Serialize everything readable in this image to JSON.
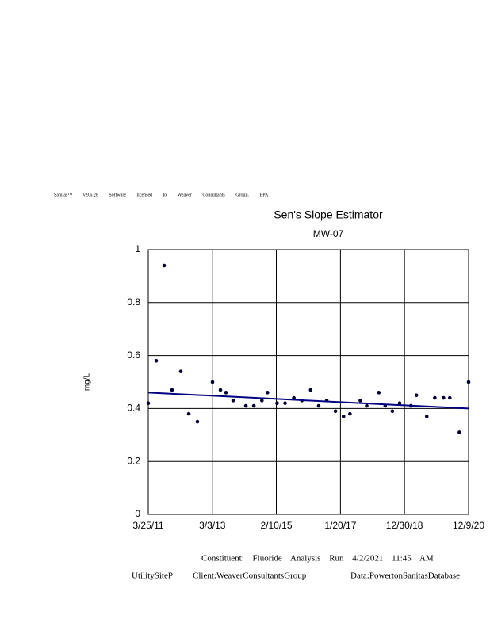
{
  "header": "Sanitas™ v.9.6.28 Software licensed to Weaver Consultants Group. EPA",
  "footer": [
    "Constituent: Fluoride Analysis Run 4/2/2021 11:45 AM",
    "UtilitySiteP",
    "Client:WeaverConsultantsGroup",
    "Data:PowertonSanitasDatabase"
  ],
  "chart_data": {
    "type": "scatter",
    "title": "Sen's Slope Estimator",
    "subtitle": "MW-07",
    "y_label": "mg/L",
    "series": [
      {
        "name": "MW-07",
        "color": "#000033",
        "x": [
          "3/25/11",
          "6/21/11",
          "9/17/11",
          "12/13/11",
          "3/19/12",
          "6/15/12",
          "9/19/12",
          "3/5/13",
          "6/1/13",
          "8/1/13",
          "10/20/13",
          "3/10/14",
          "6/6/14",
          "9/3/14",
          "11/4/14",
          "2/18/15",
          "5/18/15",
          "8/23/15",
          "11/20/15",
          "2/25/16",
          "5/24/16",
          "8/21/16",
          "11/26/16",
          "2/23/17",
          "5/5/17",
          "8/28/17",
          "11/7/17",
          "3/21/18",
          "5/31/18",
          "8/18/18",
          "11/6/18",
          "3/10/19",
          "5/11/19",
          "9/3/19",
          "12/1/19",
          "3/6/20",
          "5/15/20",
          "8/29/20",
          "12/9/20"
        ],
        "values": [
          0.42,
          0.58,
          0.94,
          0.47,
          0.54,
          0.38,
          0.35,
          0.5,
          0.47,
          0.46,
          0.43,
          0.41,
          0.41,
          0.43,
          0.46,
          0.42,
          0.42,
          0.44,
          0.43,
          0.47,
          0.41,
          0.43,
          0.39,
          0.37,
          0.38,
          0.43,
          0.41,
          0.46,
          0.41,
          0.39,
          0.42,
          0.41,
          0.45,
          0.37,
          0.44,
          0.44,
          0.44,
          0.31,
          0.5
        ]
      }
    ],
    "trend": {
      "color": "#000080",
      "x": [
        "3/25/11",
        "12/9/20"
      ],
      "values": [
        0.46,
        0.4
      ]
    },
    "xlim": [
      "3/25/11",
      "12/9/20"
    ],
    "xticks": [
      "3/25/11",
      "3/3/13",
      "2/10/15",
      "1/20/17",
      "12/30/18",
      "12/9/20"
    ],
    "ylim": [
      0,
      1
    ],
    "yticks": [
      0,
      0.2,
      0.4,
      0.6,
      0.8,
      1
    ],
    "grid": true
  }
}
